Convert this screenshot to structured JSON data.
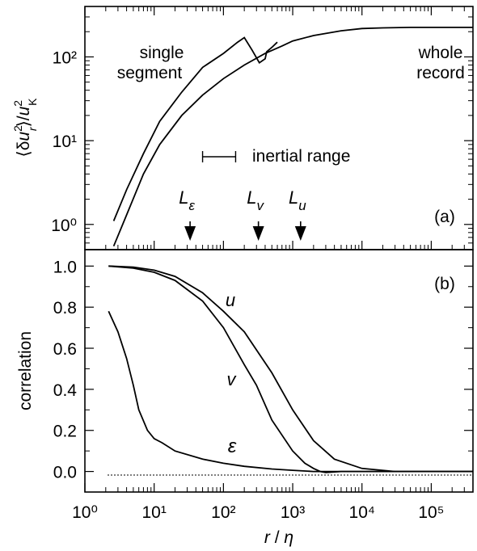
{
  "chart_data": [
    {
      "panel": "(a)",
      "type": "line",
      "ylabel": "⟨δu_r²⟩/u_K²",
      "xscale": "log",
      "yscale": "log",
      "xlim": [
        1,
        400000
      ],
      "ylim": [
        0.5,
        400
      ],
      "y_ticks": [
        "10⁰",
        "10¹",
        "10²"
      ],
      "series": [
        {
          "name": "single segment",
          "x": [
            2.6,
            4,
            7,
            12,
            25,
            50,
            100,
            160,
            200,
            260,
            330,
            400,
            420,
            500,
            600
          ],
          "y": [
            1.1,
            2.6,
            7,
            17,
            38,
            75,
            110,
            150,
            170,
            120,
            85,
            95,
            115,
            130,
            150
          ]
        },
        {
          "name": "whole record",
          "x": [
            2.6,
            4,
            7,
            12,
            25,
            50,
            100,
            200,
            400,
            700,
            1000,
            2000,
            5000,
            10000,
            20000,
            50000,
            100000,
            400000
          ],
          "y": [
            0.55,
            1.3,
            4,
            9,
            20,
            35,
            55,
            80,
            110,
            135,
            155,
            180,
            205,
            218,
            222,
            225,
            225,
            225
          ]
        }
      ],
      "labels": {
        "single": [
          "single",
          "segment"
        ],
        "whole": [
          "whole",
          "record"
        ],
        "panel": "(a)",
        "inertial": "inertial range"
      },
      "inertial_range": [
        50,
        150
      ],
      "markers": [
        {
          "label": "L",
          "sub": "ε",
          "x": 33
        },
        {
          "label": "L",
          "sub": "v",
          "x": 320
        },
        {
          "label": "L",
          "sub": "u",
          "x": 1300
        }
      ]
    },
    {
      "panel": "(b)",
      "type": "line",
      "ylabel": "correlation",
      "xlabel": "r / η",
      "xscale": "log",
      "xlim": [
        1,
        400000
      ],
      "ylim": [
        -0.1,
        1.08
      ],
      "y_ticks": [
        "0.0",
        "0.2",
        "0.4",
        "0.6",
        "0.8",
        "1.0"
      ],
      "x_ticks": [
        "10⁰",
        "10¹",
        "10²",
        "10³",
        "10⁴",
        "10⁵"
      ],
      "series": [
        {
          "name": "u",
          "x": [
            2.2,
            5,
            10,
            20,
            50,
            100,
            200,
            500,
            1000,
            2000,
            4000,
            10000,
            30000,
            100000,
            400000
          ],
          "y": [
            1.0,
            0.995,
            0.98,
            0.95,
            0.87,
            0.78,
            0.68,
            0.48,
            0.3,
            0.15,
            0.06,
            0.015,
            0.0,
            0.0,
            0.0
          ]
        },
        {
          "name": "v",
          "x": [
            2.2,
            5,
            10,
            20,
            50,
            100,
            200,
            300,
            500,
            1000,
            1500,
            2000,
            2500,
            3000,
            5000,
            10000,
            100000,
            400000
          ],
          "y": [
            1.0,
            0.99,
            0.97,
            0.93,
            0.83,
            0.7,
            0.52,
            0.42,
            0.25,
            0.1,
            0.04,
            0.015,
            0.0,
            -0.005,
            0.0,
            0.0,
            0.0,
            0.0
          ]
        },
        {
          "name": "ε",
          "x": [
            2.2,
            3,
            4,
            5,
            6,
            8,
            10,
            13,
            20,
            50,
            100,
            200,
            500,
            1000,
            2000,
            400000
          ],
          "y": [
            0.78,
            0.68,
            0.55,
            0.42,
            0.3,
            0.2,
            0.16,
            0.14,
            0.1,
            0.06,
            0.04,
            0.025,
            0.012,
            0.006,
            0.0,
            0.0
          ]
        }
      ],
      "labels": {
        "panel": "(b)",
        "u": "u",
        "v": "v",
        "eps": "ε"
      }
    }
  ]
}
